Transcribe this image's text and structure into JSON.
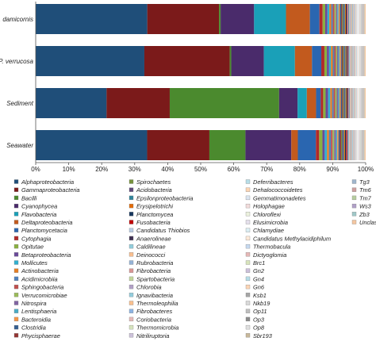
{
  "chart_data": {
    "type": "bar",
    "orientation": "horizontal",
    "stacked": true,
    "normalized": true,
    "categories": [
      "P. damicornis",
      "P. verrucosa",
      "Sediment",
      "Seawater"
    ],
    "xlim": [
      0,
      100
    ],
    "xticks": [
      "0%",
      "10%",
      "20%",
      "30%",
      "40%",
      "50%",
      "60%",
      "70%",
      "80%",
      "90%",
      "100%"
    ],
    "grid": false,
    "legend_position": "bottom",
    "series": [
      {
        "name": "Alphaproteobacteria",
        "color": "#1f4e79",
        "values": [
          35.0,
          35.0,
          23.0,
          34.0
        ]
      },
      {
        "name": "Gammaproteobacteria",
        "color": "#7b1a1a",
        "values": [
          22.5,
          27.5,
          20.5,
          19.0
        ]
      },
      {
        "name": "Bacilli",
        "color": "#4b8a2e",
        "values": [
          0.5,
          0.5,
          35.5,
          11.0
        ]
      },
      {
        "name": "Cyanophycea",
        "color": "#4a2b6b",
        "values": [
          10.5,
          10.5,
          6.0,
          14.0
        ]
      },
      {
        "name": "Flavobacteria",
        "color": "#1aa0b8",
        "values": [
          10.0,
          10.0,
          3.0,
          0
        ]
      },
      {
        "name": "Deltaproteobacteria",
        "color": "#c25a1e",
        "values": [
          7.5,
          5.5,
          3.0,
          2.0
        ]
      },
      {
        "name": "Planctomycetacia",
        "color": "#2a66b0",
        "values": [
          3.0,
          3.0,
          1.5,
          5.5
        ]
      },
      {
        "name": "Cytophagia",
        "color": "#b02a2a",
        "values": [
          1.0,
          1.0,
          0.8,
          1.0
        ]
      },
      {
        "name": "Opitutae",
        "color": "#8ab040",
        "values": [
          0.8,
          0.8,
          0.8,
          1.0
        ]
      },
      {
        "name": "Betaproteobacteria",
        "color": "#6a4a9a",
        "values": [
          0.7,
          0.7,
          0.8,
          0.7
        ]
      },
      {
        "name": "Mollicutes",
        "color": "#30b0d0",
        "values": [
          0.6,
          0.6,
          0.7,
          0.7
        ]
      },
      {
        "name": "Actinobacteria",
        "color": "#e67e22",
        "values": [
          0.6,
          0.6,
          0.6,
          0.6
        ]
      },
      {
        "name": "Acidimicrobiia",
        "color": "#4f81bd",
        "values": [
          0.5,
          0.5,
          0.5,
          0.6
        ]
      },
      {
        "name": "Sphingobacteria",
        "color": "#c0504d",
        "values": [
          0.5,
          0.5,
          0.5,
          0.5
        ]
      },
      {
        "name": "Verrucomicrobiae",
        "color": "#9bbb59",
        "values": [
          0.5,
          0.4,
          0.5,
          0.5
        ]
      },
      {
        "name": "Nitrospira",
        "color": "#8064a2",
        "values": [
          0.4,
          0.4,
          0.5,
          0.5
        ]
      },
      {
        "name": "Lentisphaeria",
        "color": "#4bacc6",
        "values": [
          0.4,
          0.4,
          0.4,
          0.4
        ]
      },
      {
        "name": "Bacteroidia",
        "color": "#f79646",
        "values": [
          0.4,
          0.4,
          0.4,
          0.4
        ]
      },
      {
        "name": "Clostridia",
        "color": "#365f91",
        "values": [
          0.4,
          0.3,
          0.4,
          0.4
        ]
      },
      {
        "name": "Phycisphaerae",
        "color": "#943634",
        "values": [
          0.3,
          0.3,
          0.3,
          0.4
        ]
      },
      {
        "name": "Spirochaetes",
        "color": "#76923c",
        "values": [
          0.3,
          0.3,
          0.3,
          0.3
        ]
      },
      {
        "name": "Acidobacteria",
        "color": "#5f497a",
        "values": [
          0.3,
          0.3,
          0.3,
          0.3
        ]
      },
      {
        "name": "Epsilonproteobacteria",
        "color": "#31849b",
        "values": [
          0.3,
          0.3,
          0.3,
          0.3
        ]
      },
      {
        "name": "Erysipelotrichi",
        "color": "#e36c09",
        "values": [
          0.3,
          0.3,
          0.3,
          0.3
        ]
      },
      {
        "name": "Planctomycea",
        "color": "#17375e",
        "values": [
          0.3,
          0.3,
          0.3,
          0.3
        ]
      },
      {
        "name": "Fusobacteria",
        "color": "#c00000",
        "values": [
          0.2,
          0.2,
          0.2,
          0.3
        ]
      },
      {
        "name": "Candidatus Thiobios",
        "color": "#b8cce4",
        "values": [
          0.2,
          0.2,
          0.2,
          0.2
        ]
      },
      {
        "name": "Anaerolineae",
        "color": "#403152",
        "values": [
          0.2,
          0.2,
          0.2,
          0.2
        ]
      },
      {
        "name": "Caldilineae",
        "color": "#92cddc",
        "values": [
          0.2,
          0.2,
          0.2,
          0.2
        ]
      },
      {
        "name": "Deinococci",
        "color": "#fabf8f",
        "values": [
          0.2,
          0.2,
          0.2,
          0.2
        ]
      },
      {
        "name": "Rubrobacteria",
        "color": "#95b3d7",
        "values": [
          0.2,
          0.2,
          0.2,
          0.2
        ]
      },
      {
        "name": "Fibrobacteria",
        "color": "#d99694",
        "values": [
          0.2,
          0.2,
          0.2,
          0.2
        ]
      },
      {
        "name": "Spartobacteria",
        "color": "#c3d69b",
        "values": [
          0.2,
          0.2,
          0.2,
          0.2
        ]
      },
      {
        "name": "Chlorobia",
        "color": "#b2a1c7",
        "values": [
          0.2,
          0.2,
          0.2,
          0.2
        ]
      },
      {
        "name": "Ignavibacteria",
        "color": "#93cddd",
        "values": [
          0.2,
          0.2,
          0.2,
          0.2
        ]
      },
      {
        "name": "Thermoleophilia",
        "color": "#fac08f",
        "values": [
          0.2,
          0.2,
          0.2,
          0.2
        ]
      },
      {
        "name": "Fibrobacteres",
        "color": "#8db3e2",
        "values": [
          0.2,
          0.2,
          0.2,
          0.2
        ]
      },
      {
        "name": "Coriobacteria",
        "color": "#e6b9b8",
        "values": [
          0.2,
          0.2,
          0.2,
          0.2
        ]
      },
      {
        "name": "Thermomicrobia",
        "color": "#d7e4bd",
        "values": [
          0.2,
          0.2,
          0.2,
          0.2
        ]
      },
      {
        "name": "Nitriliruptoria",
        "color": "#ccc1da",
        "values": [
          0.2,
          0.2,
          0.2,
          0.2
        ]
      },
      {
        "name": "Deferribacteres",
        "color": "#b7dee8",
        "values": [
          0.1,
          0.1,
          0.1,
          0.1
        ]
      },
      {
        "name": "Dehalococcoidetes",
        "color": "#fcd5b4",
        "values": [
          0.1,
          0.1,
          0.1,
          0.1
        ]
      },
      {
        "name": "Gemmatimonadetes",
        "color": "#dbe5f1",
        "values": [
          0.1,
          0.1,
          0.1,
          0.1
        ]
      },
      {
        "name": "Holophagae",
        "color": "#f2dcdb",
        "values": [
          0.1,
          0.1,
          0.1,
          0.1
        ]
      },
      {
        "name": "Chloroflexi",
        "color": "#ebf1dd",
        "values": [
          0.1,
          0.1,
          0.1,
          0.1
        ]
      },
      {
        "name": "Elusimicrobia",
        "color": "#e5e0ec",
        "values": [
          0.1,
          0.1,
          0.1,
          0.1
        ]
      },
      {
        "name": "Chlamydiae",
        "color": "#dbeef3",
        "values": [
          0.1,
          0.1,
          0.1,
          0.1
        ]
      },
      {
        "name": "Candidatus Methylacidiphilum",
        "color": "#fde9d9",
        "values": [
          0.1,
          0.1,
          0.1,
          0.1
        ]
      },
      {
        "name": "Thermobacula",
        "color": "#c6d9f0",
        "values": [
          0.1,
          0.1,
          0.1,
          0.1
        ]
      },
      {
        "name": "Dictyoglomia",
        "color": "#e6b8b7",
        "values": [
          0.1,
          0.1,
          0.1,
          0.1
        ]
      },
      {
        "name": "Brc1",
        "color": "#d8e4bc",
        "values": [
          0.1,
          0.1,
          0.1,
          0.1
        ]
      },
      {
        "name": "Gn2",
        "color": "#ccc0da",
        "values": [
          0.1,
          0.1,
          0.1,
          0.1
        ]
      },
      {
        "name": "Gn4",
        "color": "#b7dde8",
        "values": [
          0.1,
          0.1,
          0.1,
          0.1
        ]
      },
      {
        "name": "Gn6",
        "color": "#fcd5b5",
        "values": [
          0.1,
          0.1,
          0.1,
          0.1
        ]
      },
      {
        "name": "Ksb1",
        "color": "#a6a6a6",
        "values": [
          0.1,
          0.1,
          0.1,
          0.1
        ]
      },
      {
        "name": "Nkb19",
        "color": "#d9d9d9",
        "values": [
          0.1,
          0.1,
          0.1,
          0.1
        ]
      },
      {
        "name": "Op11",
        "color": "#bfbfbf",
        "values": [
          0.1,
          0.1,
          0.1,
          0.1
        ]
      },
      {
        "name": "Op3",
        "color": "#8c8c8c",
        "values": [
          0.1,
          0.1,
          0.1,
          0.1
        ]
      },
      {
        "name": "Op8",
        "color": "#e0e0e0",
        "values": [
          0.1,
          0.1,
          0.1,
          0.1
        ]
      },
      {
        "name": "Sbr193",
        "color": "#c8b89a",
        "values": [
          0.1,
          0.1,
          0.1,
          0.1
        ]
      },
      {
        "name": "Tg3",
        "color": "#9fb6cd",
        "values": [
          0.1,
          0.1,
          0.1,
          0.1
        ]
      },
      {
        "name": "Tm6",
        "color": "#cd9f9f",
        "values": [
          0.1,
          0.1,
          0.1,
          0.1
        ]
      },
      {
        "name": "Tm7",
        "color": "#b6cd9f",
        "values": [
          0.1,
          0.1,
          0.1,
          0.1
        ]
      },
      {
        "name": "Ws3",
        "color": "#b0a0c8",
        "values": [
          0.1,
          0.1,
          0.1,
          0.1
        ]
      },
      {
        "name": "Zb3",
        "color": "#a0c8c8",
        "values": [
          0.1,
          0.1,
          0.1,
          0.1
        ]
      },
      {
        "name": "Unclassified",
        "color": "#f4c7a1",
        "values": [
          0.4,
          0.4,
          0.4,
          0.4
        ]
      }
    ]
  }
}
